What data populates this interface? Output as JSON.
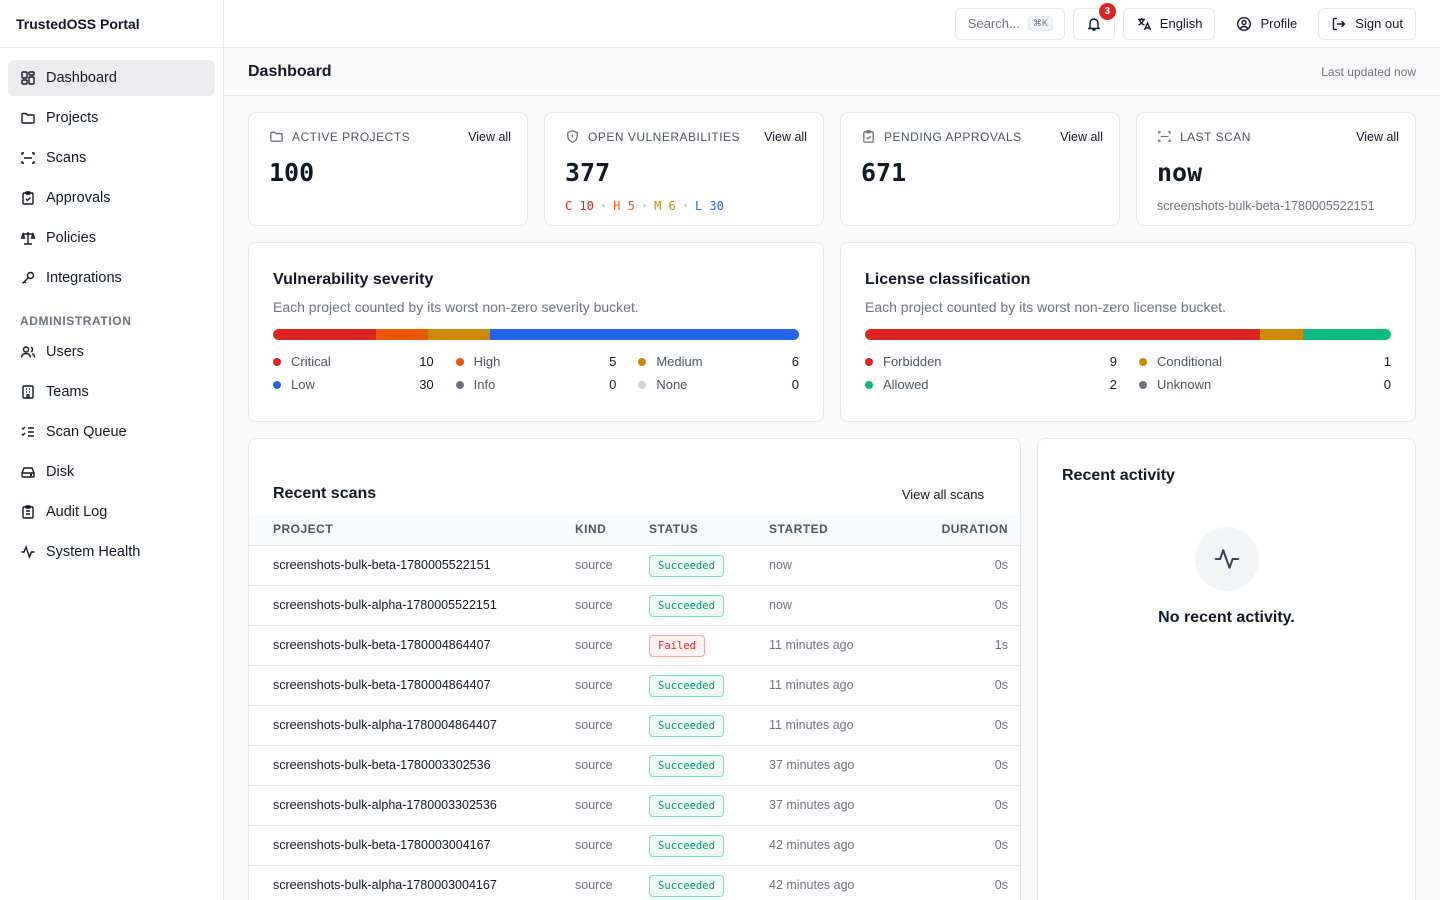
{
  "app": {
    "title": "TrustedOSS Portal"
  },
  "sidebar": {
    "items": [
      {
        "label": "Dashboard"
      },
      {
        "label": "Projects"
      },
      {
        "label": "Scans"
      },
      {
        "label": "Approvals"
      },
      {
        "label": "Policies"
      },
      {
        "label": "Integrations"
      }
    ],
    "admin_section": "ADMINISTRATION",
    "admin_items": [
      {
        "label": "Users"
      },
      {
        "label": "Teams"
      },
      {
        "label": "Scan Queue"
      },
      {
        "label": "Disk"
      },
      {
        "label": "Audit Log"
      },
      {
        "label": "System Health"
      }
    ]
  },
  "topbar": {
    "search_placeholder": "Search...",
    "search_shortcut": "⌘K",
    "notifications_count": "3",
    "language_label": "English",
    "profile_label": "Profile",
    "signout_label": "Sign out"
  },
  "header": {
    "title": "Dashboard",
    "updated": "Last updated now"
  },
  "stats": {
    "view_all": "View all",
    "active_projects": {
      "label": "Active projects",
      "value": "100"
    },
    "open_vulns": {
      "label": "Open vulnerabilities",
      "value": "377",
      "breakdown": {
        "c": "C 10",
        "h": "H 5",
        "m": "M 6",
        "l": "L 30",
        "sep": "·"
      }
    },
    "pending_approvals": {
      "label": "Pending approvals",
      "value": "671"
    },
    "last_scan": {
      "label": "Last scan",
      "value": "now",
      "sub": "screenshots-bulk-beta-1780005522151"
    }
  },
  "severity": {
    "title": "Vulnerability severity",
    "desc": "Each project counted by its worst non-zero severity bucket.",
    "buckets": [
      {
        "name": "Critical",
        "count": 10,
        "color": "#dc2626"
      },
      {
        "name": "High",
        "count": 5,
        "color": "#ea580c"
      },
      {
        "name": "Medium",
        "count": 6,
        "color": "#ca8a04"
      },
      {
        "name": "Low",
        "count": 30,
        "color": "#2563eb"
      },
      {
        "name": "Info",
        "count": 0,
        "color": "#6b7280"
      },
      {
        "name": "None",
        "count": 0,
        "color": "#d1d5db"
      }
    ]
  },
  "license": {
    "title": "License classification",
    "desc": "Each project counted by its worst non-zero license bucket.",
    "buckets": [
      {
        "name": "Forbidden",
        "count": 9,
        "color": "#dc2626"
      },
      {
        "name": "Conditional",
        "count": 1,
        "color": "#ca8a04"
      },
      {
        "name": "Allowed",
        "count": 2,
        "color": "#10b981"
      },
      {
        "name": "Unknown",
        "count": 0,
        "color": "#6b7280"
      }
    ]
  },
  "recent_scans": {
    "title": "Recent scans",
    "view_all": "View all scans",
    "columns": [
      "PROJECT",
      "KIND",
      "STATUS",
      "STARTED",
      "DURATION"
    ],
    "rows": [
      {
        "project": "screenshots-bulk-beta-1780005522151",
        "kind": "source",
        "status": "Succeeded",
        "started": "now",
        "duration": "0s"
      },
      {
        "project": "screenshots-bulk-alpha-1780005522151",
        "kind": "source",
        "status": "Succeeded",
        "started": "now",
        "duration": "0s"
      },
      {
        "project": "screenshots-bulk-beta-1780004864407",
        "kind": "source",
        "status": "Failed",
        "started": "11 minutes ago",
        "duration": "1s"
      },
      {
        "project": "screenshots-bulk-beta-1780004864407",
        "kind": "source",
        "status": "Succeeded",
        "started": "11 minutes ago",
        "duration": "0s"
      },
      {
        "project": "screenshots-bulk-alpha-1780004864407",
        "kind": "source",
        "status": "Succeeded",
        "started": "11 minutes ago",
        "duration": "0s"
      },
      {
        "project": "screenshots-bulk-beta-1780003302536",
        "kind": "source",
        "status": "Succeeded",
        "started": "37 minutes ago",
        "duration": "0s"
      },
      {
        "project": "screenshots-bulk-alpha-1780003302536",
        "kind": "source",
        "status": "Succeeded",
        "started": "37 minutes ago",
        "duration": "0s"
      },
      {
        "project": "screenshots-bulk-beta-1780003004167",
        "kind": "source",
        "status": "Succeeded",
        "started": "42 minutes ago",
        "duration": "0s"
      },
      {
        "project": "screenshots-bulk-alpha-1780003004167",
        "kind": "source",
        "status": "Succeeded",
        "started": "42 minutes ago",
        "duration": "0s"
      }
    ]
  },
  "recent_activity": {
    "title": "Recent activity",
    "empty": "No recent activity."
  }
}
